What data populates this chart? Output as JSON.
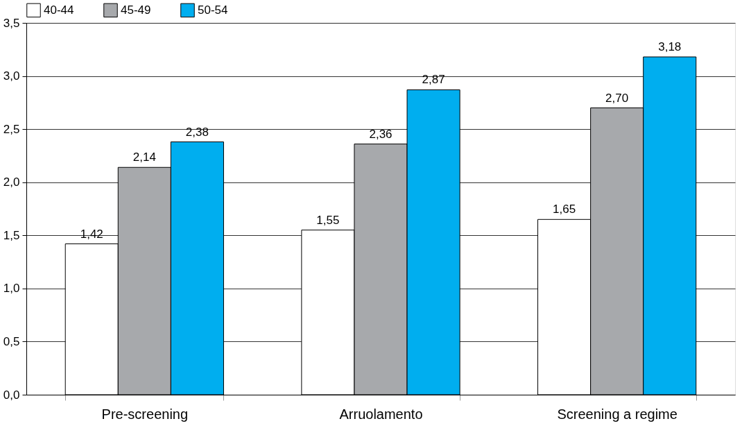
{
  "chart_data": {
    "type": "bar",
    "categories": [
      "Pre-screening",
      "Arruolamento",
      "Screening a regime"
    ],
    "series": [
      {
        "name": "40-44",
        "color": "#ffffff",
        "values": [
          1.42,
          1.55,
          1.65
        ],
        "value_labels": [
          "1,42",
          "1,55",
          "1,65"
        ]
      },
      {
        "name": "45-49",
        "color": "#a7a9ac",
        "values": [
          2.14,
          2.36,
          2.7
        ],
        "value_labels": [
          "2,14",
          "2,36",
          "2,70"
        ]
      },
      {
        "name": "50-54",
        "color": "#00aeef",
        "values": [
          2.38,
          2.87,
          3.18
        ],
        "value_labels": [
          "2,38",
          "2,87",
          "3,18"
        ]
      }
    ],
    "ylim": [
      0,
      3.5
    ],
    "yticks": [
      {
        "value": 0,
        "label": "0,0"
      },
      {
        "value": 0.5,
        "label": "0,5"
      },
      {
        "value": 1,
        "label": "1,0"
      },
      {
        "value": 1.5,
        "label": "1,5"
      },
      {
        "value": 2,
        "label": "2,0"
      },
      {
        "value": 2.5,
        "label": "2,5"
      },
      {
        "value": 3,
        "label": "3,0"
      },
      {
        "value": 3.5,
        "label": "3,5"
      }
    ],
    "grid": "y",
    "legend": "top"
  }
}
